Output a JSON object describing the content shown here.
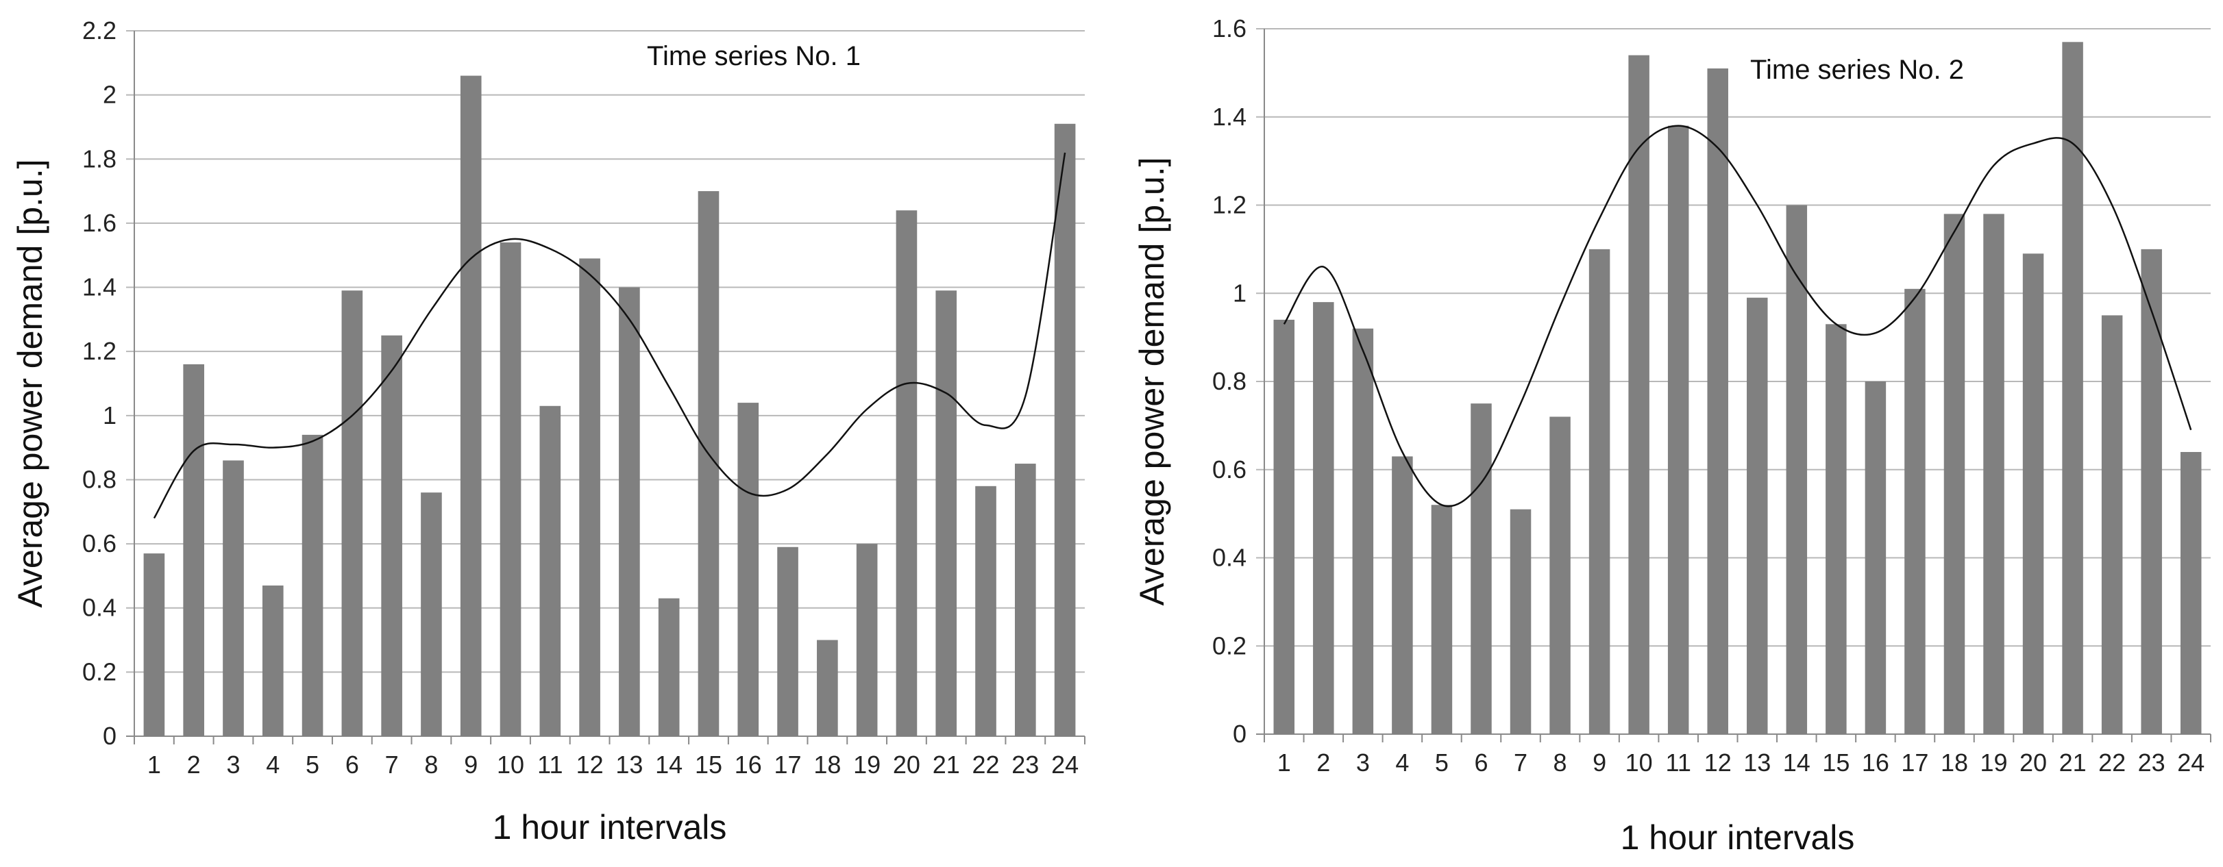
{
  "chart_data": [
    {
      "type": "bar",
      "title": "Time series No. 1",
      "xlabel": "1 hour intervals",
      "ylabel": "Average power demand [p.u.]",
      "ylim": [
        0,
        2.2
      ],
      "yticks": [
        "0",
        "0.2",
        "0.4",
        "0.6",
        "0.8",
        "1",
        "1.2",
        "1.4",
        "1.6",
        "1.8",
        "2",
        "2.2"
      ],
      "grid": true,
      "categories": [
        "1",
        "2",
        "3",
        "4",
        "5",
        "6",
        "7",
        "8",
        "9",
        "10",
        "11",
        "12",
        "13",
        "14",
        "15",
        "16",
        "17",
        "18",
        "19",
        "20",
        "21",
        "22",
        "23",
        "24"
      ],
      "values": [
        0.57,
        1.16,
        0.86,
        0.47,
        0.94,
        1.39,
        1.25,
        0.76,
        2.06,
        1.54,
        1.03,
        1.49,
        1.4,
        0.43,
        1.7,
        1.04,
        0.59,
        0.3,
        0.6,
        1.64,
        1.39,
        0.78,
        0.85,
        1.91
      ],
      "bar_color": "#808080",
      "trend_line": [
        0.68,
        0.89,
        0.91,
        0.9,
        0.92,
        1.0,
        1.14,
        1.33,
        1.49,
        1.55,
        1.52,
        1.44,
        1.3,
        1.09,
        0.88,
        0.76,
        0.77,
        0.88,
        1.02,
        1.1,
        1.07,
        0.97,
        1.06,
        1.82
      ]
    },
    {
      "type": "bar",
      "title": "Time series No. 2",
      "xlabel": "1 hour intervals",
      "ylabel": "Average power demand [p.u.]",
      "ylim": [
        0,
        1.6
      ],
      "yticks": [
        "0",
        "0.2",
        "0.4",
        "0.6",
        "0.8",
        "1",
        "1.2",
        "1.4",
        "1.6"
      ],
      "grid": true,
      "categories": [
        "1",
        "2",
        "3",
        "4",
        "5",
        "6",
        "7",
        "8",
        "9",
        "10",
        "11",
        "12",
        "13",
        "14",
        "15",
        "16",
        "17",
        "18",
        "19",
        "20",
        "21",
        "22",
        "23",
        "24"
      ],
      "values": [
        0.94,
        0.98,
        0.92,
        0.63,
        0.52,
        0.75,
        0.51,
        0.72,
        1.1,
        1.54,
        1.38,
        1.51,
        0.99,
        1.2,
        0.93,
        0.8,
        1.01,
        1.18,
        1.18,
        1.09,
        1.57,
        0.95,
        1.1,
        0.64
      ],
      "bar_color": "#808080",
      "trend_line": [
        0.93,
        1.06,
        0.87,
        0.64,
        0.52,
        0.57,
        0.75,
        0.97,
        1.17,
        1.33,
        1.38,
        1.33,
        1.2,
        1.04,
        0.93,
        0.91,
        0.99,
        1.14,
        1.29,
        1.34,
        1.34,
        1.2,
        0.96,
        0.69
      ]
    }
  ]
}
